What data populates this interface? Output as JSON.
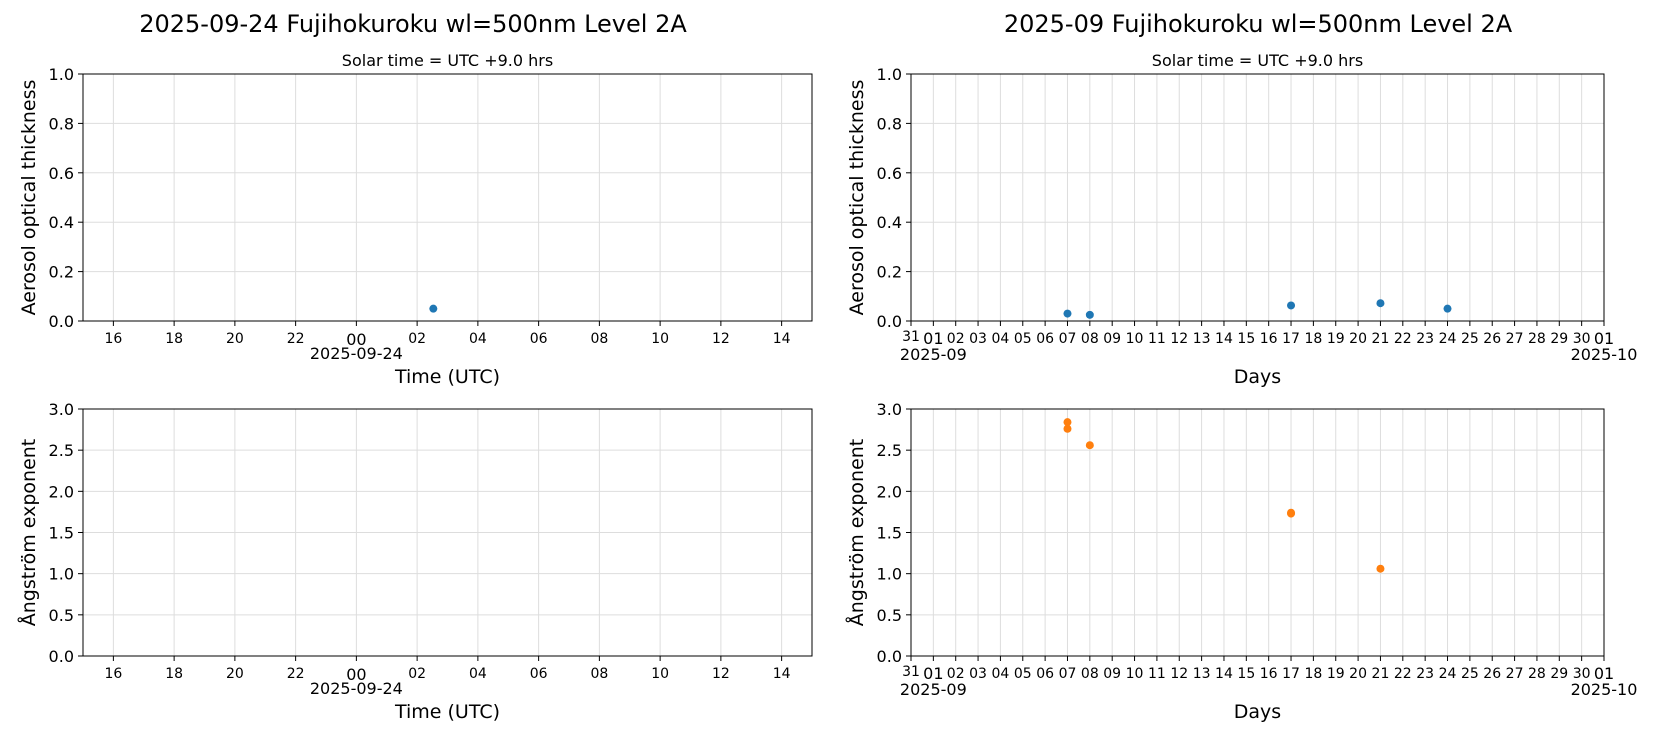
{
  "figure": {
    "left_title": "2025-09-24  Fujihokuroku  wl=500nm  Level 2A",
    "right_title": "2025-09  Fujihokuroku  wl=500nm  Level 2A"
  },
  "colors": {
    "aot": "#1f77b4",
    "angstrom": "#ff7f0e",
    "grid": "#dddddd",
    "axis": "#000000"
  },
  "chart_data": [
    {
      "id": "daily-aot",
      "type": "scatter",
      "title": "Solar time = UTC +9.0 hrs",
      "xlabel": "Time (UTC)",
      "ylabel": "Aerosol optical thickness",
      "xlim": [
        "2025-09-23T15:00",
        "2025-09-24T15:00"
      ],
      "ylim": [
        0,
        1.0
      ],
      "yticks": [
        "0.0",
        "0.2",
        "0.4",
        "0.6",
        "0.8",
        "1.0"
      ],
      "xticks": [
        "16",
        "18",
        "20",
        "22",
        "00",
        "02",
        "04",
        "06",
        "08",
        "10",
        "12",
        "14"
      ],
      "x_date_label": "2025-09-24",
      "grid": true,
      "series": [
        {
          "color": "#1f77b4",
          "points": [
            {
              "x": "2025-09-24T02:32",
              "y": 0.05
            }
          ]
        }
      ]
    },
    {
      "id": "monthly-aot",
      "type": "scatter",
      "title": "Solar time = UTC +9.0 hrs",
      "xlabel": "Days",
      "ylabel": "Aerosol optical thickness",
      "xlim": [
        "2025-08-31",
        "2025-10-01"
      ],
      "ylim": [
        0,
        1.0
      ],
      "yticks": [
        "0.0",
        "0.2",
        "0.4",
        "0.6",
        "0.8",
        "1.0"
      ],
      "xticks": [
        "31",
        "01",
        "02",
        "03",
        "04",
        "05",
        "06",
        "07",
        "08",
        "09",
        "10",
        "11",
        "12",
        "13",
        "14",
        "15",
        "16",
        "17",
        "18",
        "19",
        "20",
        "21",
        "22",
        "23",
        "24",
        "25",
        "26",
        "27",
        "28",
        "29",
        "30",
        "01"
      ],
      "x_date_labels": [
        "2025-09",
        "2025-10"
      ],
      "grid": true,
      "series": [
        {
          "color": "#1f77b4",
          "points": [
            {
              "x": "2025-09-07T00:00",
              "y": 0.03
            },
            {
              "x": "2025-09-08T00:00",
              "y": 0.025
            },
            {
              "x": "2025-09-17T00:00",
              "y": 0.063
            },
            {
              "x": "2025-09-21T00:00",
              "y": 0.072
            },
            {
              "x": "2025-09-24T00:00",
              "y": 0.05
            }
          ]
        }
      ]
    },
    {
      "id": "daily-angstrom",
      "type": "scatter",
      "title": "",
      "xlabel": "Time (UTC)",
      "ylabel": "Ångström exponent",
      "xlim": [
        "2025-09-23T15:00",
        "2025-09-24T15:00"
      ],
      "ylim": [
        0,
        3.0
      ],
      "yticks": [
        "0.0",
        "0.5",
        "1.0",
        "1.5",
        "2.0",
        "2.5",
        "3.0"
      ],
      "xticks": [
        "16",
        "18",
        "20",
        "22",
        "00",
        "02",
        "04",
        "06",
        "08",
        "10",
        "12",
        "14"
      ],
      "x_date_label": "2025-09-24",
      "grid": true,
      "series": [
        {
          "color": "#ff7f0e",
          "points": []
        }
      ]
    },
    {
      "id": "monthly-angstrom",
      "type": "scatter",
      "title": "",
      "xlabel": "Days",
      "ylabel": "Ångström exponent",
      "xlim": [
        "2025-08-31",
        "2025-10-01"
      ],
      "ylim": [
        0,
        3.0
      ],
      "yticks": [
        "0.0",
        "0.5",
        "1.0",
        "1.5",
        "2.0",
        "2.5",
        "3.0"
      ],
      "xticks": [
        "31",
        "01",
        "02",
        "03",
        "04",
        "05",
        "06",
        "07",
        "08",
        "09",
        "10",
        "11",
        "12",
        "13",
        "14",
        "15",
        "16",
        "17",
        "18",
        "19",
        "20",
        "21",
        "22",
        "23",
        "24",
        "25",
        "26",
        "27",
        "28",
        "29",
        "30",
        "01"
      ],
      "x_date_labels": [
        "2025-09",
        "2025-10"
      ],
      "grid": true,
      "series": [
        {
          "color": "#ff7f0e",
          "points": [
            {
              "x": "2025-09-07T00:00",
              "y": 2.84
            },
            {
              "x": "2025-09-07T00:00",
              "y": 2.76
            },
            {
              "x": "2025-09-08T00:00",
              "y": 2.56
            },
            {
              "x": "2025-09-17T00:00",
              "y": 1.74
            },
            {
              "x": "2025-09-17T00:00",
              "y": 1.73
            },
            {
              "x": "2025-09-21T00:00",
              "y": 1.06
            }
          ]
        }
      ]
    }
  ]
}
